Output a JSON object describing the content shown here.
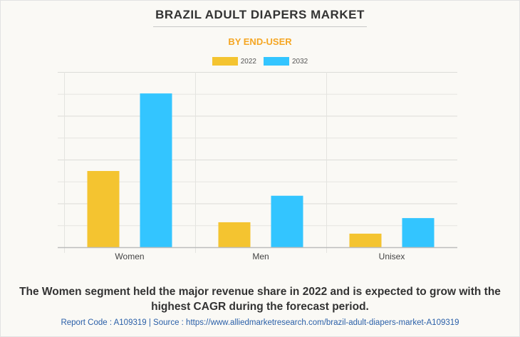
{
  "title": "BRAZIL ADULT DIAPERS MARKET",
  "subtitle": "BY END-USER",
  "caption": "The Women segment held the major revenue share in 2022 and is expected to grow with the highest CAGR during the forecast period.",
  "source": "Report Code : A109319  |  Source : https://www.alliedmarketresearch.com/brazil-adult-diapers-market-A109319",
  "chart_data": {
    "type": "bar",
    "title": "BRAZIL ADULT DIAPERS MARKET",
    "subtitle": "BY END-USER",
    "xlabel": "",
    "ylabel": "",
    "categories": [
      "Women",
      "Men",
      "Unisex"
    ],
    "series": [
      {
        "name": "2022",
        "color": "#f4c430",
        "values": [
          3.48,
          1.14,
          0.62
        ]
      },
      {
        "name": "2032",
        "color": "#33c5ff",
        "values": [
          7.02,
          2.35,
          1.33
        ]
      }
    ],
    "ylim": [
      0,
      8
    ],
    "y_units": "relative (no y-axis tick labels shown; values in gridline units)",
    "grid": true,
    "legend": "top-center"
  }
}
